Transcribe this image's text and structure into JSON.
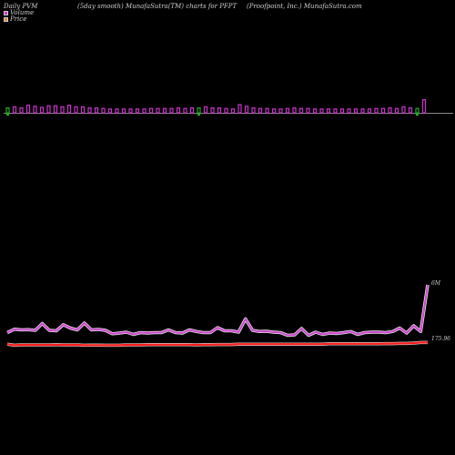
{
  "header": {
    "left": "Daily PVM",
    "center": "(5day smooth) MunafaSutra(TM) charts for PFPT",
    "right": "(Proofpoint, Inc.) MunafaSutra.com"
  },
  "legend": [
    {
      "label": "Volume",
      "color": "#cc33cc"
    },
    {
      "label": "Price",
      "color": "#e68a33"
    }
  ],
  "chart_data": {
    "type": "bar+line",
    "volume_bars": {
      "values": [
        0.45,
        0.55,
        0.45,
        0.7,
        0.6,
        0.5,
        0.65,
        0.65,
        0.55,
        0.7,
        0.55,
        0.55,
        0.45,
        0.45,
        0.4,
        0.35,
        0.35,
        0.35,
        0.35,
        0.35,
        0.35,
        0.4,
        0.4,
        0.4,
        0.4,
        0.45,
        0.4,
        0.45,
        0.45,
        0.55,
        0.45,
        0.45,
        0.4,
        0.35,
        0.75,
        0.6,
        0.45,
        0.4,
        0.4,
        0.35,
        0.35,
        0.4,
        0.45,
        0.4,
        0.4,
        0.35,
        0.35,
        0.35,
        0.35,
        0.35,
        0.35,
        0.35,
        0.35,
        0.35,
        0.4,
        0.4,
        0.45,
        0.4,
        0.55,
        0.45,
        0.4,
        1.2
      ],
      "direction": [
        "down",
        "up",
        "up",
        "up",
        "up",
        "up",
        "up",
        "up",
        "up",
        "up",
        "up",
        "up",
        "up",
        "up",
        "up",
        "up",
        "up",
        "up",
        "up",
        "up",
        "up",
        "up",
        "up",
        "up",
        "up",
        "up",
        "up",
        "up",
        "down",
        "up",
        "up",
        "up",
        "up",
        "up",
        "up",
        "up",
        "up",
        "up",
        "up",
        "up",
        "up",
        "up",
        "up",
        "up",
        "up",
        "up",
        "up",
        "up",
        "up",
        "up",
        "up",
        "up",
        "up",
        "up",
        "up",
        "up",
        "up",
        "up",
        "up",
        "up",
        "down",
        "up"
      ]
    },
    "volume_line": {
      "label": "6M",
      "values": [
        0.5,
        0.65,
        0.62,
        0.63,
        0.6,
        0.9,
        0.6,
        0.58,
        0.85,
        0.7,
        0.62,
        0.92,
        0.62,
        0.64,
        0.6,
        0.45,
        0.48,
        0.52,
        0.42,
        0.5,
        0.48,
        0.5,
        0.5,
        0.62,
        0.5,
        0.48,
        0.62,
        0.55,
        0.5,
        0.5,
        0.72,
        0.58,
        0.58,
        0.52,
        1.1,
        0.6,
        0.55,
        0.56,
        0.52,
        0.5,
        0.38,
        0.4,
        0.68,
        0.38,
        0.52,
        0.42,
        0.48,
        0.46,
        0.5,
        0.55,
        0.42,
        0.5,
        0.52,
        0.52,
        0.5,
        0.55,
        0.7,
        0.48,
        0.8,
        0.55,
        2.6
      ]
    },
    "price_line": {
      "label": "175.96",
      "values": [
        0.15,
        0.05,
        0.08,
        0.08,
        0.08,
        0.08,
        0.08,
        0.1,
        0.08,
        0.08,
        0.08,
        0.05,
        0.06,
        0.06,
        0.05,
        0.05,
        0.05,
        0.08,
        0.08,
        0.08,
        0.1,
        0.1,
        0.1,
        0.1,
        0.1,
        0.1,
        0.1,
        0.08,
        0.1,
        0.1,
        0.12,
        0.12,
        0.12,
        0.15,
        0.15,
        0.15,
        0.15,
        0.15,
        0.15,
        0.15,
        0.15,
        0.15,
        0.15,
        0.15,
        0.15,
        0.15,
        0.18,
        0.18,
        0.18,
        0.18,
        0.18,
        0.18,
        0.18,
        0.18,
        0.2,
        0.2,
        0.22,
        0.22,
        0.25,
        0.3,
        0.3
      ]
    },
    "grid": false,
    "legend_position": "top-left",
    "colors": {
      "background": "#000000",
      "volume_up": "#cc33cc",
      "volume_down": "#22aa22",
      "volume_line": "#cc44cc",
      "volume_line_shadow": "#ffffff",
      "price_line": "#ff1a1a",
      "price_line_shadow": "#ffffff",
      "baseline": "#888888"
    }
  }
}
